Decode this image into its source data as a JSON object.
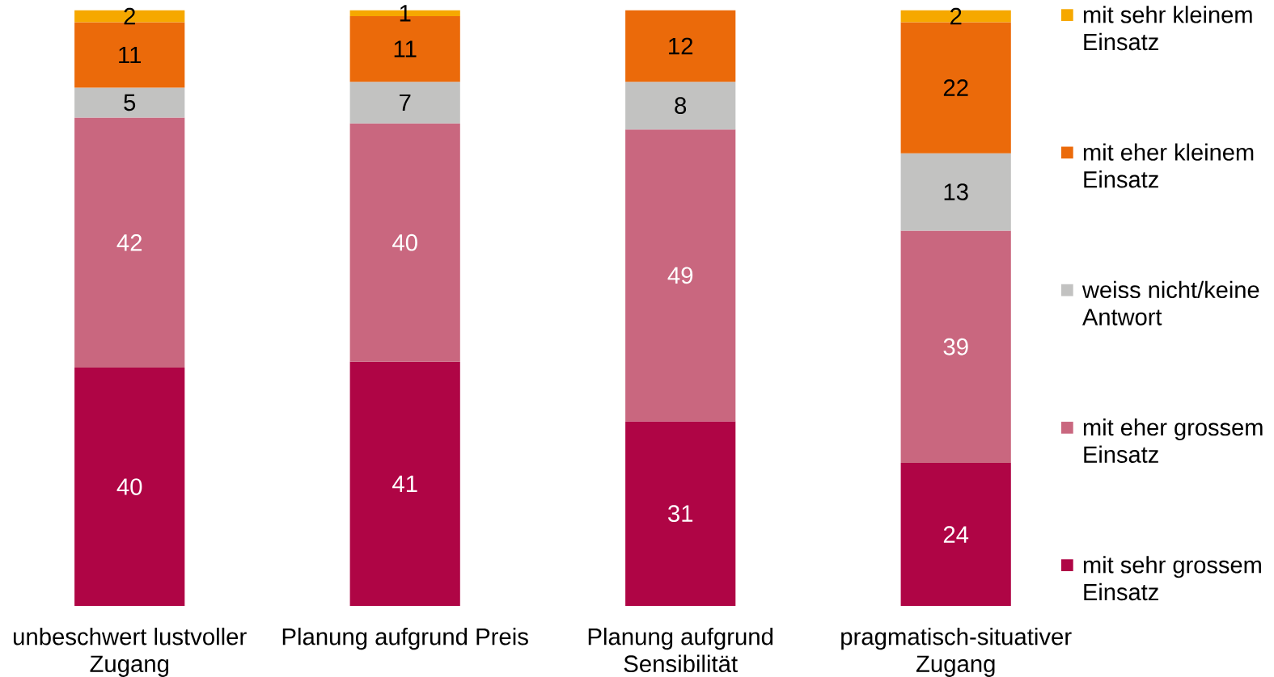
{
  "chart_data": {
    "type": "bar",
    "stacked": true,
    "categories": [
      "unbeschwert lustvoller Zugang",
      "Planung aufgrund Preis",
      "Planung aufgrund Sensibilität",
      "pragmatisch-situativer Zugang"
    ],
    "series": [
      {
        "name": "mit sehr grossem Einsatz",
        "color": "#AF0545",
        "values": [
          40,
          41,
          31,
          24
        ]
      },
      {
        "name": "mit eher grossem Einsatz",
        "color": "#C9677F",
        "values": [
          42,
          40,
          49,
          39
        ]
      },
      {
        "name": "weiss nicht/keine Antwort",
        "color": "#C2C2C1",
        "values": [
          5,
          7,
          8,
          13
        ]
      },
      {
        "name": "mit eher kleinem Einsatz",
        "color": "#EB6A0A",
        "values": [
          11,
          11,
          12,
          22
        ]
      },
      {
        "name": "mit sehr kleinem Einsatz",
        "color": "#F6A800",
        "values": [
          2,
          1,
          null,
          2
        ]
      }
    ],
    "ylim": [
      0,
      100
    ],
    "tick_labels": "x",
    "data_labels": true,
    "legend": "right"
  }
}
